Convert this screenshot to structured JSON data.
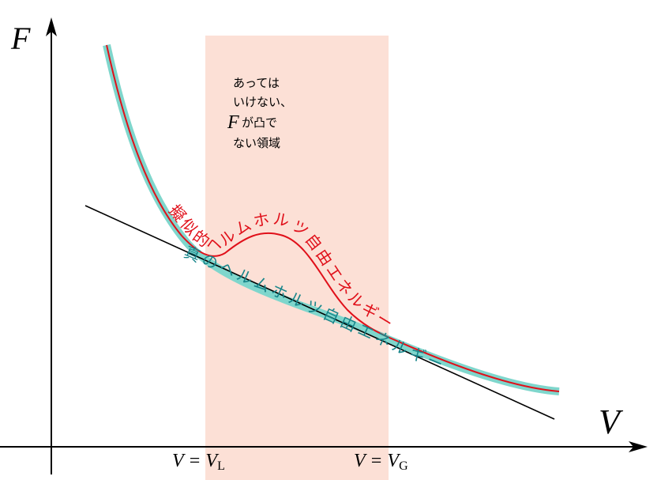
{
  "axes": {
    "y_label": "F",
    "x_label": "V"
  },
  "region": {
    "line1": "あっては",
    "line2": "いけない、",
    "var": "F",
    "line3": "が凸で",
    "line4": "ない領域",
    "left_label": {
      "text": "V = V",
      "sub": "L"
    },
    "right_label": {
      "text": "V = V",
      "sub": "G"
    }
  },
  "curves": {
    "pseudo": "擬似的ヘルムホルツ自由エネルギー",
    "true": "真のヘルムホルツ自由エネルギー"
  }
}
